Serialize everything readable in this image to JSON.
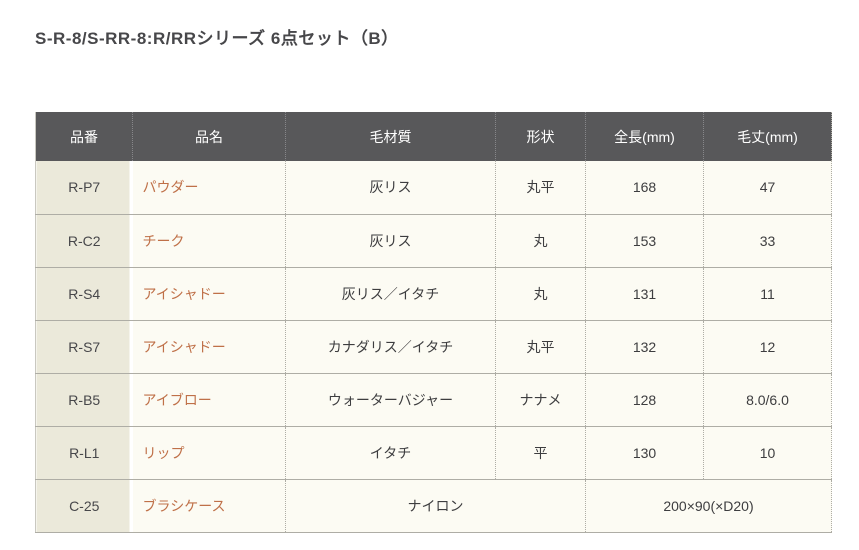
{
  "title": "S-R-8/S-RR-8:R/RRシリーズ 6点セット（B）",
  "colors": {
    "accent_product_name": "#bf7048",
    "header_bg": "#58585a",
    "header_text": "#ffffff",
    "body_text": "#3d3d3f",
    "code_col_bg": "#ebe9da",
    "cell_bg": "#fcfbf3",
    "border": "#aeada5",
    "title_color": "#47474a"
  },
  "table": {
    "columns": [
      {
        "key": "product-code",
        "label": "品番"
      },
      {
        "key": "product-name",
        "label": "品名"
      },
      {
        "key": "material",
        "label": "毛材質"
      },
      {
        "key": "shape",
        "label": "形状"
      },
      {
        "key": "length-mm",
        "label": "全長(mm)"
      },
      {
        "key": "hair-length-mm",
        "label": "毛丈(mm)"
      }
    ],
    "rows": [
      {
        "cells": [
          {
            "text": "R-P7"
          },
          {
            "text": "パウダー"
          },
          {
            "text": "灰リス"
          },
          {
            "text": "丸平"
          },
          {
            "text": "168"
          },
          {
            "text": "47"
          }
        ]
      },
      {
        "cells": [
          {
            "text": "R-C2"
          },
          {
            "text": "チーク"
          },
          {
            "text": "灰リス"
          },
          {
            "text": "丸"
          },
          {
            "text": "153"
          },
          {
            "text": "33"
          }
        ]
      },
      {
        "cells": [
          {
            "text": "R-S4"
          },
          {
            "text": "アイシャドー"
          },
          {
            "text": "灰リス／イタチ"
          },
          {
            "text": "丸"
          },
          {
            "text": "131"
          },
          {
            "text": "11"
          }
        ]
      },
      {
        "cells": [
          {
            "text": "R-S7"
          },
          {
            "text": "アイシャドー"
          },
          {
            "text": "カナダリス／イタチ"
          },
          {
            "text": "丸平"
          },
          {
            "text": "132"
          },
          {
            "text": "12"
          }
        ]
      },
      {
        "cells": [
          {
            "text": "R-B5"
          },
          {
            "text": "アイブロー"
          },
          {
            "text": "ウォーターバジャー"
          },
          {
            "text": "ナナメ"
          },
          {
            "text": "128"
          },
          {
            "text": "8.0/6.0"
          }
        ]
      },
      {
        "cells": [
          {
            "text": "R-L1"
          },
          {
            "text": "リップ"
          },
          {
            "text": "イタチ"
          },
          {
            "text": "平"
          },
          {
            "text": "130"
          },
          {
            "text": "10"
          }
        ]
      },
      {
        "cells": [
          {
            "text": "C-25"
          },
          {
            "text": "ブラシケース"
          },
          {
            "text": "ナイロン",
            "colspan": 2
          },
          {
            "text": "200×90(×D20)",
            "colspan": 2
          }
        ]
      }
    ]
  }
}
